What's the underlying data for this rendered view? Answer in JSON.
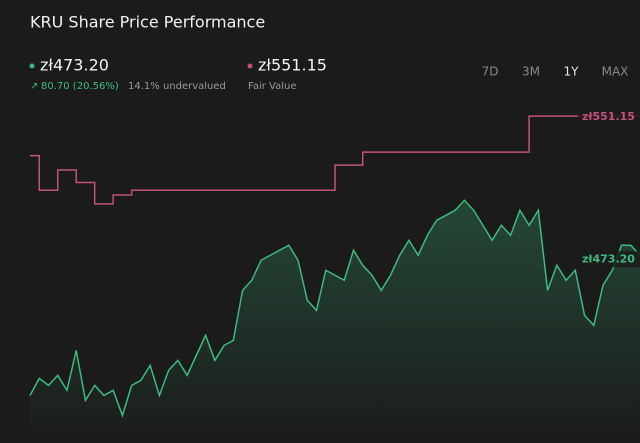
{
  "chart_data": {
    "type": "line",
    "title": "KRU Share Price Performance",
    "periods": [
      "7D",
      "3M",
      "1Y",
      "MAX"
    ],
    "active_period": 2,
    "ylim": [
      368,
      563
    ],
    "series": [
      {
        "name": "zł473.20",
        "color": "#3dbb7e",
        "change": "80.70 (20.56%)",
        "note": "14.1% undervalued",
        "fill": true,
        "step": false,
        "values": [
          394.6,
          404.2,
          400.3,
          405.9,
          397.5,
          419.9,
          391.9,
          400.3,
          394.6,
          397.5,
          383.4,
          400.3,
          403.1,
          411.5,
          394.6,
          408.7,
          414.3,
          405.9,
          417.1,
          428.3,
          414.3,
          422.7,
          425.5,
          453.5,
          459.2,
          470.4,
          473.2,
          476.0,
          478.8,
          470.4,
          448.0,
          442.3,
          464.8,
          462.0,
          459.2,
          476.0,
          467.6,
          462.0,
          453.5,
          462.0,
          473.2,
          481.6,
          473.2,
          484.4,
          492.8,
          495.6,
          498.4,
          504.0,
          498.4,
          490.0,
          481.6,
          490.0,
          484.4,
          498.4,
          490.0,
          498.4,
          453.5,
          467.6,
          459.2,
          464.8,
          439.5,
          433.9,
          456.4,
          464.8,
          478.8,
          478.8,
          473.2
        ]
      },
      {
        "name": "zł551.15",
        "color": "#c2517e",
        "note": "Fair Value",
        "fill": false,
        "step": true,
        "values": [
          529,
          509.6,
          509.6,
          521,
          521,
          514,
          514,
          502,
          502,
          507,
          507,
          509.6,
          509.6,
          509.6,
          509.6,
          509.6,
          509.6,
          509.6,
          509.6,
          509.6,
          509.6,
          509.6,
          509.6,
          509.6,
          509.6,
          509.6,
          509.6,
          509.6,
          509.6,
          509.6,
          509.6,
          509.6,
          509.6,
          523.7,
          523.7,
          523.7,
          531,
          531,
          531,
          531,
          531,
          531,
          531,
          531,
          531,
          531,
          531,
          531,
          531,
          531,
          531,
          531,
          531,
          531,
          551.15,
          551.15,
          551.15,
          551.15,
          551.15,
          551.15,
          551.15,
          551.15,
          551.15,
          551.15,
          551.15,
          551.15,
          551.15
        ]
      }
    ]
  }
}
